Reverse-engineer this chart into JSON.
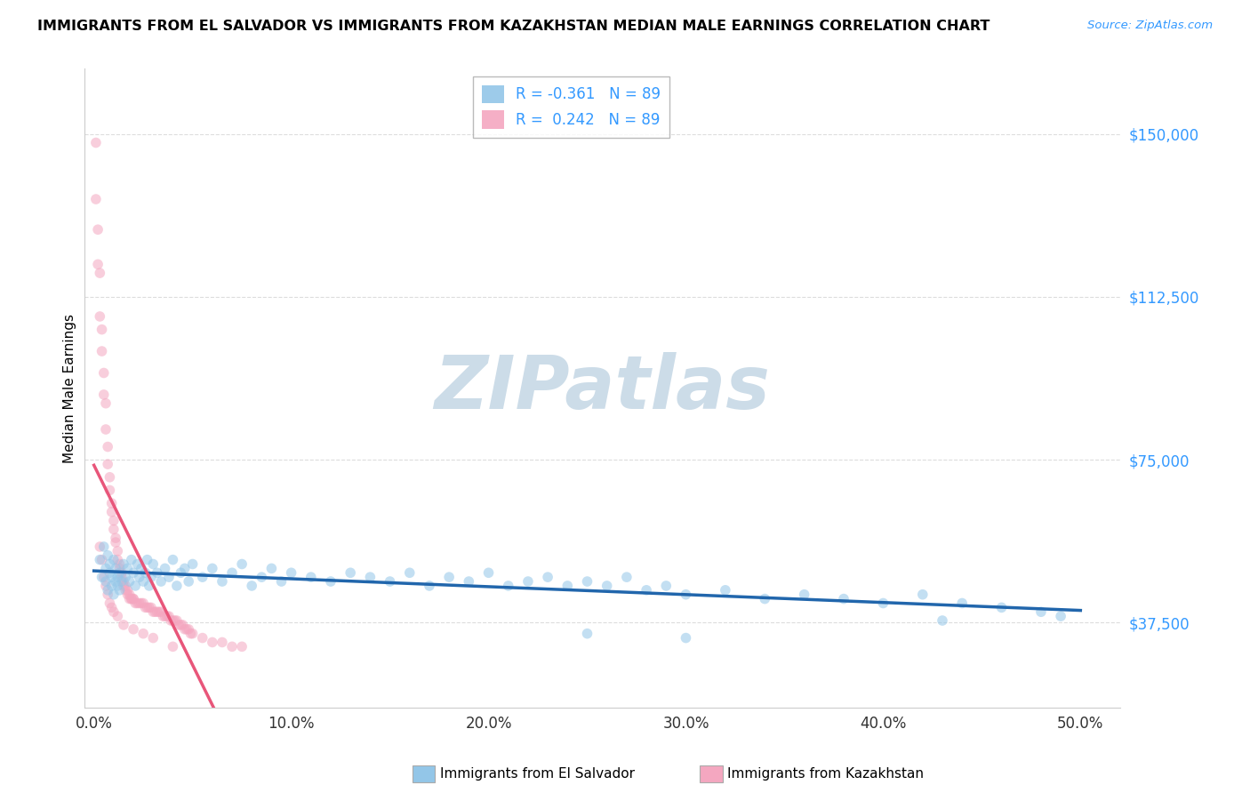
{
  "title": "IMMIGRANTS FROM EL SALVADOR VS IMMIGRANTS FROM KAZAKHSTAN MEDIAN MALE EARNINGS CORRELATION CHART",
  "source": "Source: ZipAtlas.com",
  "ylabel": "Median Male Earnings",
  "xlabel_ticks": [
    "0.0%",
    "10.0%",
    "20.0%",
    "30.0%",
    "40.0%",
    "50.0%"
  ],
  "xlabel_tick_vals": [
    0.0,
    0.1,
    0.2,
    0.3,
    0.4,
    0.5
  ],
  "ytick_labels": [
    "$37,500",
    "$75,000",
    "$112,500",
    "$150,000"
  ],
  "ytick_vals": [
    37500,
    75000,
    112500,
    150000
  ],
  "ylim": [
    18000,
    165000
  ],
  "xlim": [
    -0.005,
    0.52
  ],
  "legend1_text": "R = -0.361   N = 89",
  "legend2_text": "R =  0.242   N = 89",
  "legend1_color": "#93c6e8",
  "legend2_color": "#f4a7c0",
  "watermark_text": "ZIPatlas",
  "watermark_color": "#ccdce8",
  "el_salvador_color": "#93c6e8",
  "kazakhstan_color": "#f4a7c0",
  "el_salvador_line_color": "#2166ac",
  "kazakhstan_line_color": "#e8567a",
  "kazakhstan_line_dashed_color": "#d8a0b8",
  "dot_alpha": 0.55,
  "dot_size": 70,
  "background_color": "#ffffff",
  "grid_color": "#dddddd",
  "ytick_color": "#3399ff",
  "xtick_color": "#333333",
  "el_salvador_x": [
    0.003,
    0.004,
    0.005,
    0.006,
    0.006,
    0.007,
    0.007,
    0.008,
    0.008,
    0.009,
    0.009,
    0.01,
    0.01,
    0.011,
    0.011,
    0.012,
    0.012,
    0.013,
    0.013,
    0.014,
    0.015,
    0.016,
    0.017,
    0.018,
    0.019,
    0.02,
    0.021,
    0.022,
    0.023,
    0.024,
    0.025,
    0.026,
    0.027,
    0.028,
    0.029,
    0.03,
    0.032,
    0.034,
    0.036,
    0.038,
    0.04,
    0.042,
    0.044,
    0.046,
    0.048,
    0.05,
    0.055,
    0.06,
    0.065,
    0.07,
    0.075,
    0.08,
    0.085,
    0.09,
    0.095,
    0.1,
    0.11,
    0.12,
    0.13,
    0.14,
    0.15,
    0.16,
    0.17,
    0.18,
    0.19,
    0.2,
    0.21,
    0.22,
    0.23,
    0.24,
    0.25,
    0.26,
    0.27,
    0.28,
    0.29,
    0.3,
    0.32,
    0.34,
    0.36,
    0.38,
    0.4,
    0.42,
    0.44,
    0.46,
    0.48,
    0.49,
    0.3,
    0.25,
    0.43
  ],
  "el_salvador_y": [
    52000,
    48000,
    55000,
    50000,
    47000,
    53000,
    45000,
    49000,
    51000,
    46000,
    48000,
    52000,
    44000,
    47000,
    50000,
    46000,
    48000,
    45000,
    49000,
    47000,
    51000,
    48000,
    50000,
    47000,
    52000,
    49000,
    46000,
    51000,
    48000,
    50000,
    47000,
    49000,
    52000,
    46000,
    48000,
    51000,
    49000,
    47000,
    50000,
    48000,
    52000,
    46000,
    49000,
    50000,
    47000,
    51000,
    48000,
    50000,
    47000,
    49000,
    51000,
    46000,
    48000,
    50000,
    47000,
    49000,
    48000,
    47000,
    49000,
    48000,
    47000,
    49000,
    46000,
    48000,
    47000,
    49000,
    46000,
    47000,
    48000,
    46000,
    47000,
    46000,
    48000,
    45000,
    46000,
    44000,
    45000,
    43000,
    44000,
    43000,
    42000,
    44000,
    42000,
    41000,
    40000,
    39000,
    34000,
    35000,
    38000
  ],
  "kazakhstan_x": [
    0.001,
    0.001,
    0.002,
    0.002,
    0.003,
    0.003,
    0.004,
    0.004,
    0.005,
    0.005,
    0.006,
    0.006,
    0.007,
    0.007,
    0.008,
    0.008,
    0.009,
    0.009,
    0.01,
    0.01,
    0.011,
    0.011,
    0.012,
    0.012,
    0.013,
    0.013,
    0.014,
    0.014,
    0.015,
    0.015,
    0.016,
    0.016,
    0.017,
    0.017,
    0.018,
    0.018,
    0.019,
    0.019,
    0.02,
    0.02,
    0.021,
    0.022,
    0.023,
    0.024,
    0.025,
    0.026,
    0.027,
    0.028,
    0.029,
    0.03,
    0.031,
    0.032,
    0.033,
    0.034,
    0.035,
    0.036,
    0.037,
    0.038,
    0.039,
    0.04,
    0.041,
    0.042,
    0.043,
    0.044,
    0.045,
    0.046,
    0.047,
    0.048,
    0.049,
    0.05,
    0.055,
    0.06,
    0.065,
    0.07,
    0.075,
    0.004,
    0.003,
    0.005,
    0.006,
    0.007,
    0.008,
    0.009,
    0.01,
    0.012,
    0.015,
    0.02,
    0.025,
    0.03,
    0.04
  ],
  "kazakhstan_y": [
    148000,
    135000,
    128000,
    120000,
    118000,
    108000,
    105000,
    100000,
    95000,
    90000,
    88000,
    82000,
    78000,
    74000,
    71000,
    68000,
    65000,
    63000,
    61000,
    59000,
    57000,
    56000,
    54000,
    52000,
    51000,
    50000,
    49000,
    48000,
    47000,
    46000,
    46000,
    45000,
    45000,
    44000,
    44000,
    43000,
    43000,
    43000,
    43000,
    43000,
    42000,
    42000,
    42000,
    42000,
    42000,
    41000,
    41000,
    41000,
    41000,
    40000,
    40000,
    40000,
    40000,
    40000,
    39000,
    39000,
    39000,
    39000,
    38000,
    38000,
    38000,
    38000,
    37000,
    37000,
    37000,
    36000,
    36000,
    36000,
    35000,
    35000,
    34000,
    33000,
    33000,
    32000,
    32000,
    52000,
    55000,
    48000,
    46000,
    44000,
    42000,
    41000,
    40000,
    39000,
    37000,
    36000,
    35000,
    34000,
    32000
  ]
}
